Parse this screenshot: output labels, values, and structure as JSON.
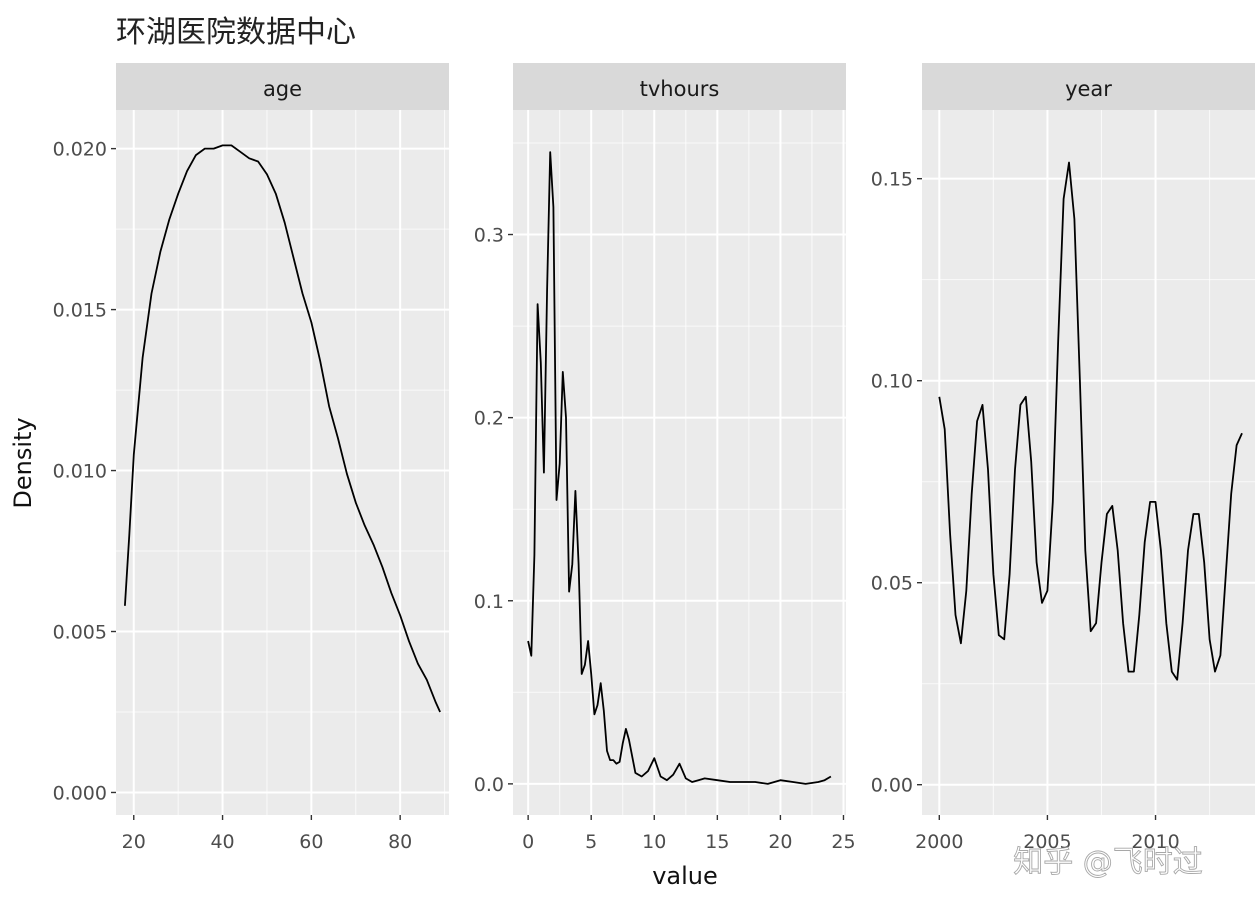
{
  "title": "环湖医院数据中心",
  "watermark": "知乎 @飞时过",
  "ylabel": "Density",
  "xlabel": "value",
  "chart_data": {
    "type": "line",
    "title": "环湖医院数据中心",
    "xlabel": "value",
    "ylabel": "Density",
    "grid": true,
    "facets": [
      {
        "name": "age",
        "xlim": [
          16,
          91
        ],
        "ylim": [
          -0.0007,
          0.0212
        ],
        "xticks": [
          20,
          40,
          60,
          80
        ],
        "xtick_labels": [
          "20",
          "40",
          "60",
          "80"
        ],
        "yticks": [
          0,
          0.005,
          0.01,
          0.015,
          0.02
        ],
        "ytick_labels": [
          "0.000",
          "0.005",
          "0.010",
          "0.015",
          "0.020"
        ],
        "x": [
          18,
          19,
          20,
          22,
          24,
          26,
          28,
          30,
          32,
          34,
          36,
          38,
          40,
          42,
          44,
          46,
          48,
          50,
          52,
          54,
          56,
          58,
          60,
          62,
          64,
          66,
          68,
          70,
          72,
          74,
          76,
          78,
          80,
          82,
          84,
          86,
          88,
          89
        ],
        "y": [
          0.0058,
          0.008,
          0.0105,
          0.0135,
          0.0155,
          0.0168,
          0.0178,
          0.0186,
          0.0193,
          0.0198,
          0.02,
          0.02,
          0.0201,
          0.0201,
          0.0199,
          0.0197,
          0.0196,
          0.0192,
          0.0186,
          0.0177,
          0.0166,
          0.0155,
          0.0146,
          0.0134,
          0.012,
          0.011,
          0.0099,
          0.009,
          0.0083,
          0.0077,
          0.007,
          0.0062,
          0.0055,
          0.0047,
          0.004,
          0.0035,
          0.0028,
          0.0025
        ]
      },
      {
        "name": "tvhours",
        "xlim": [
          -1.2,
          25.2
        ],
        "ylim": [
          -0.017,
          0.368
        ],
        "xticks": [
          0,
          5,
          10,
          15,
          20,
          25
        ],
        "xtick_labels": [
          "0",
          "5",
          "10",
          "15",
          "20",
          "25"
        ],
        "yticks": [
          0,
          0.1,
          0.2,
          0.3
        ],
        "ytick_labels": [
          "0.0",
          "0.1",
          "0.2",
          "0.3"
        ],
        "x": [
          0,
          0.25,
          0.5,
          0.75,
          1.0,
          1.25,
          1.5,
          1.75,
          2.0,
          2.25,
          2.5,
          2.75,
          3.0,
          3.25,
          3.5,
          3.75,
          4.0,
          4.25,
          4.5,
          4.75,
          5.0,
          5.25,
          5.5,
          5.75,
          6.0,
          6.25,
          6.5,
          6.75,
          7.0,
          7.25,
          7.5,
          7.75,
          8.0,
          8.5,
          9.0,
          9.5,
          10.0,
          10.5,
          11.0,
          11.5,
          12.0,
          12.5,
          13.0,
          13.5,
          14.0,
          15.0,
          16.0,
          17.0,
          18.0,
          19.0,
          20.0,
          21.0,
          22.0,
          23.0,
          23.5,
          24.0
        ],
        "y": [
          0.078,
          0.07,
          0.125,
          0.262,
          0.23,
          0.17,
          0.27,
          0.345,
          0.315,
          0.155,
          0.175,
          0.225,
          0.2,
          0.105,
          0.12,
          0.16,
          0.12,
          0.06,
          0.065,
          0.078,
          0.06,
          0.038,
          0.043,
          0.055,
          0.04,
          0.018,
          0.013,
          0.013,
          0.011,
          0.012,
          0.022,
          0.03,
          0.024,
          0.006,
          0.004,
          0.007,
          0.014,
          0.004,
          0.002,
          0.005,
          0.011,
          0.003,
          0.001,
          0.002,
          0.003,
          0.002,
          0.001,
          0.001,
          0.001,
          0.0,
          0.002,
          0.001,
          0.0,
          0.001,
          0.002,
          0.004
        ]
      },
      {
        "name": "year",
        "xlim": [
          1999.2,
          2014.6
        ],
        "ylim": [
          -0.0075,
          0.167
        ],
        "xticks": [
          2000,
          2005,
          2010
        ],
        "xtick_labels": [
          "2000",
          "2005",
          "2010"
        ],
        "yticks": [
          0,
          0.05,
          0.1,
          0.15
        ],
        "ytick_labels": [
          "0.00",
          "0.05",
          "0.10",
          "0.15"
        ],
        "x": [
          2000.0,
          2000.25,
          2000.5,
          2000.75,
          2001.0,
          2001.25,
          2001.5,
          2001.75,
          2002.0,
          2002.25,
          2002.5,
          2002.75,
          2003.0,
          2003.25,
          2003.5,
          2003.75,
          2004.0,
          2004.25,
          2004.5,
          2004.75,
          2005.0,
          2005.25,
          2005.5,
          2005.75,
          2006.0,
          2006.25,
          2006.5,
          2006.75,
          2007.0,
          2007.25,
          2007.5,
          2007.75,
          2008.0,
          2008.25,
          2008.5,
          2008.75,
          2009.0,
          2009.25,
          2009.5,
          2009.75,
          2010.0,
          2010.25,
          2010.5,
          2010.75,
          2011.0,
          2011.25,
          2011.5,
          2011.75,
          2012.0,
          2012.25,
          2012.5,
          2012.75,
          2013.0,
          2013.25,
          2013.5,
          2013.75,
          2014.0
        ],
        "y": [
          0.096,
          0.088,
          0.062,
          0.042,
          0.035,
          0.048,
          0.072,
          0.09,
          0.094,
          0.078,
          0.052,
          0.037,
          0.036,
          0.052,
          0.078,
          0.094,
          0.096,
          0.08,
          0.055,
          0.045,
          0.048,
          0.07,
          0.11,
          0.145,
          0.154,
          0.14,
          0.1,
          0.058,
          0.038,
          0.04,
          0.055,
          0.067,
          0.069,
          0.058,
          0.04,
          0.028,
          0.028,
          0.042,
          0.06,
          0.07,
          0.07,
          0.058,
          0.04,
          0.028,
          0.026,
          0.04,
          0.058,
          0.067,
          0.067,
          0.055,
          0.036,
          0.028,
          0.032,
          0.052,
          0.072,
          0.084,
          0.087
        ]
      }
    ]
  }
}
